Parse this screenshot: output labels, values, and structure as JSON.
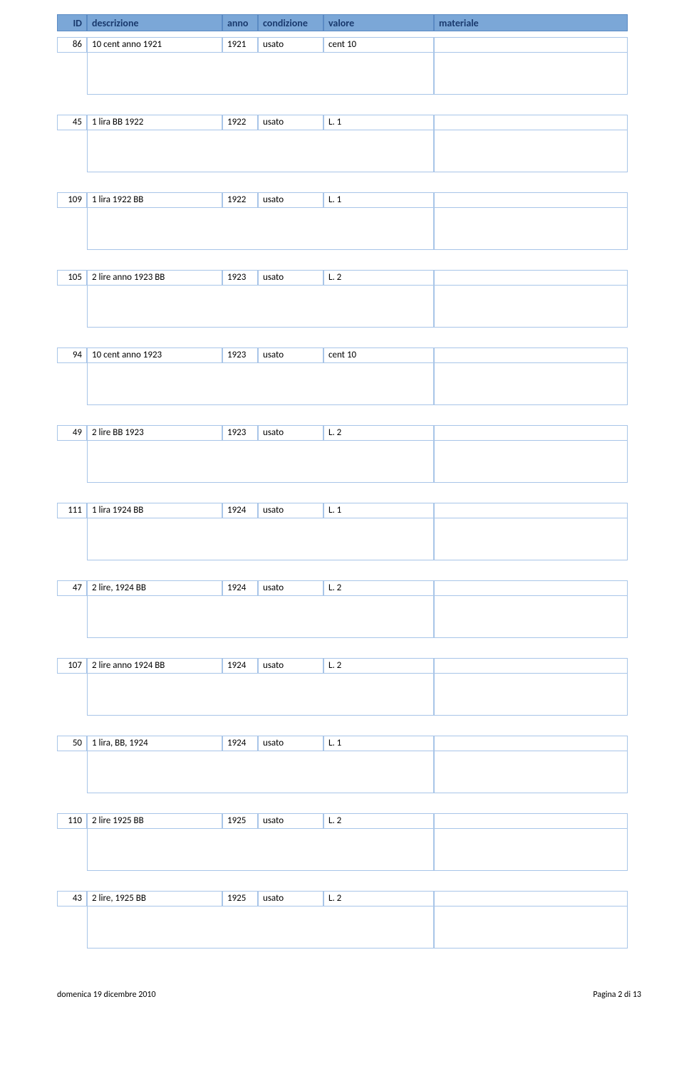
{
  "header": {
    "id": "ID",
    "descrizione": "descrizione",
    "anno": "anno",
    "condizione": "condizione",
    "valore": "valore",
    "materiale": "materiale"
  },
  "rows": [
    {
      "id": "86",
      "descrizione": "10 cent anno 1921",
      "anno": "1921",
      "condizione": "usato",
      "valore": "cent 10",
      "materiale": ""
    },
    {
      "id": "45",
      "descrizione": "1 lira BB 1922",
      "anno": "1922",
      "condizione": "usato",
      "valore": "L. 1",
      "materiale": ""
    },
    {
      "id": "109",
      "descrizione": "1 lira 1922 BB",
      "anno": "1922",
      "condizione": "usato",
      "valore": "L. 1",
      "materiale": ""
    },
    {
      "id": "105",
      "descrizione": "2 lire anno 1923 BB",
      "anno": "1923",
      "condizione": "usato",
      "valore": "L. 2",
      "materiale": ""
    },
    {
      "id": "94",
      "descrizione": "10 cent anno 1923",
      "anno": "1923",
      "condizione": "usato",
      "valore": "cent 10",
      "materiale": ""
    },
    {
      "id": "49",
      "descrizione": "2 lire BB 1923",
      "anno": "1923",
      "condizione": "usato",
      "valore": "L. 2",
      "materiale": ""
    },
    {
      "id": "111",
      "descrizione": "1 lira 1924 BB",
      "anno": "1924",
      "condizione": "usato",
      "valore": "L. 1",
      "materiale": ""
    },
    {
      "id": "47",
      "descrizione": "2 lire, 1924 BB",
      "anno": "1924",
      "condizione": "usato",
      "valore": "L. 2",
      "materiale": ""
    },
    {
      "id": "107",
      "descrizione": "2 lire anno 1924 BB",
      "anno": "1924",
      "condizione": "usato",
      "valore": "L. 2",
      "materiale": ""
    },
    {
      "id": "50",
      "descrizione": "1 lira, BB, 1924",
      "anno": "1924",
      "condizione": "usato",
      "valore": "L. 1",
      "materiale": ""
    },
    {
      "id": "110",
      "descrizione": "2 lire 1925 BB",
      "anno": "1925",
      "condizione": "usato",
      "valore": "L. 2",
      "materiale": ""
    },
    {
      "id": "43",
      "descrizione": "2 lire, 1925 BB",
      "anno": "1925",
      "condizione": "usato",
      "valore": "L. 2",
      "materiale": ""
    }
  ],
  "footer": {
    "date": "domenica 19 dicembre 2010",
    "page": "Pagina 2 di 13"
  },
  "colors": {
    "header_bg": "#7ba7d7",
    "header_border": "#5a8ac4",
    "header_text": "#1a3a6e",
    "cell_border": "#a8c5e8",
    "cell_bg": "#ffffff"
  }
}
